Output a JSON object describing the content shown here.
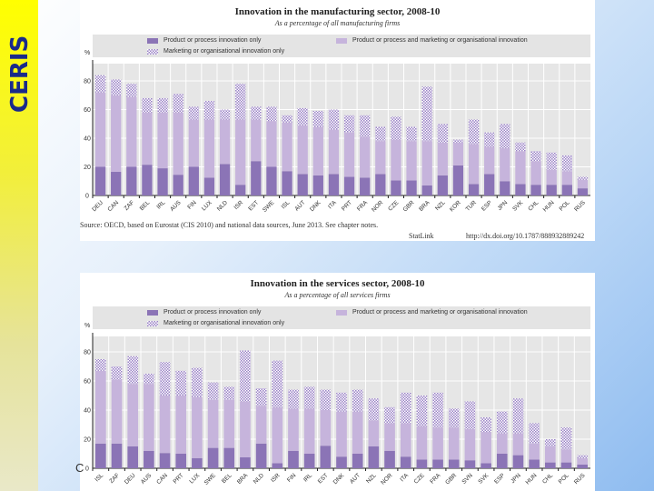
{
  "logo_text": "CERIS",
  "stray_text": "C",
  "colors": {
    "product_only": "#8b74b6",
    "both": "#c6b4dc",
    "marketing_only": "#9a82c6",
    "plot_bg": "#e6e6e6",
    "sidebar": "#ffff00"
  },
  "chart_data": [
    {
      "type": "bar",
      "stacked": true,
      "title": "Innovation in the manufacturing sector, 2008-10",
      "subtitle": "As a percentage of all manufacturing firms",
      "ylabel": "%",
      "ylim": [
        0,
        90
      ],
      "yticks": [
        0,
        20,
        40,
        60,
        80
      ],
      "grid": true,
      "legend": "top",
      "categories": [
        "DEU",
        "CAN",
        "ZAF",
        "BEL",
        "IRL",
        "AUS",
        "FIN",
        "LUX",
        "NLD",
        "ISR",
        "EST",
        "SWE",
        "ISL",
        "AUT",
        "DNK",
        "ITA",
        "PRT",
        "FRA",
        "NOR",
        "CZE",
        "GBR",
        "BRA",
        "NZL",
        "KOR",
        "TUR",
        "ESP",
        "JPN",
        "SVK",
        "CHL",
        "HUN",
        "POL",
        "RUS"
      ],
      "series": [
        {
          "name": "Product or process innovation only",
          "style": "dark",
          "values": [
            20,
            16.5,
            20,
            21.5,
            19,
            14.5,
            20,
            12.5,
            22,
            7.5,
            24,
            20,
            17,
            15,
            14,
            15,
            13,
            12.5,
            15,
            10.5,
            10.5,
            7,
            14,
            21,
            8,
            15,
            10,
            8,
            7.5,
            7.5,
            7.5,
            5
          ]
        },
        {
          "name": "Product or process and marketing or organisational innovation",
          "style": "light",
          "values": [
            52,
            53.5,
            49,
            36.5,
            39,
            43.5,
            33,
            40.5,
            31,
            45.5,
            29,
            32,
            34,
            34,
            34,
            31,
            31,
            28.5,
            23,
            28.5,
            27.5,
            31,
            23,
            16,
            28,
            19,
            23,
            23,
            16.5,
            10.5,
            9.5,
            6
          ]
        },
        {
          "name": "Marketing or organisational innovation only",
          "style": "hatch",
          "values": [
            12,
            11,
            9,
            10,
            10,
            13,
            9,
            13,
            7,
            25,
            9,
            10,
            5,
            12,
            11,
            14,
            12,
            15,
            10,
            16,
            10,
            38,
            13,
            2,
            17,
            10,
            17,
            6,
            7,
            12,
            11,
            2
          ]
        }
      ],
      "source": "Source: OECD, based on Eurostat (CIS 2010) and national data sources, June 2013. See chapter notes.",
      "statlink_label": "StatLink",
      "statlink_url": "http://dx.doi.org/10.1787/888932889242"
    },
    {
      "type": "bar",
      "stacked": true,
      "title": "Innovation in the services sector, 2008-10",
      "subtitle": "As a percentage of all services firms",
      "ylabel": "%",
      "ylim": [
        0,
        90
      ],
      "yticks": [
        0,
        20,
        40,
        60,
        80
      ],
      "grid": true,
      "legend": "top",
      "categories": [
        "ISL",
        "ZAF",
        "DEU",
        "AUS",
        "CAN",
        "PRT",
        "LUX",
        "SWE",
        "BEL",
        "BRA",
        "NLD",
        "ISR",
        "FIN",
        "IRL",
        "EST",
        "DNK",
        "AUT",
        "NZL",
        "NOR",
        "ITA",
        "CZE",
        "FRA",
        "GBR",
        "SVN",
        "SVK",
        "ESP",
        "JPN",
        "HUN",
        "CHL",
        "POL",
        "RUS"
      ],
      "series": [
        {
          "name": "Product or process innovation only",
          "style": "dark",
          "values": [
            17,
            17,
            15,
            12,
            10.5,
            10,
            7,
            14,
            14,
            7.5,
            17,
            3.5,
            12,
            10,
            15.5,
            8,
            10,
            15,
            12,
            8,
            6,
            6,
            6,
            5.5,
            3.5,
            10,
            9,
            6,
            4,
            4,
            2.5
          ]
        },
        {
          "name": "Product or process and marketing or organisational innovation",
          "style": "light",
          "values": [
            50,
            44,
            43,
            46,
            39.5,
            40,
            42,
            33,
            33,
            38.5,
            26,
            38.5,
            29,
            31,
            24.5,
            31,
            29,
            18,
            19,
            23,
            23,
            22,
            22,
            21.5,
            21.5,
            14,
            15,
            11,
            11,
            9,
            4.5
          ]
        },
        {
          "name": "Marketing or organisational innovation only",
          "style": "hatch",
          "values": [
            8,
            9,
            19,
            7,
            23,
            17,
            20,
            12,
            9,
            35,
            12,
            32,
            13,
            15,
            14,
            13,
            15,
            15,
            11,
            21,
            21,
            24,
            13,
            19,
            10,
            15,
            24,
            14,
            5,
            15,
            2
          ]
        }
      ]
    }
  ]
}
